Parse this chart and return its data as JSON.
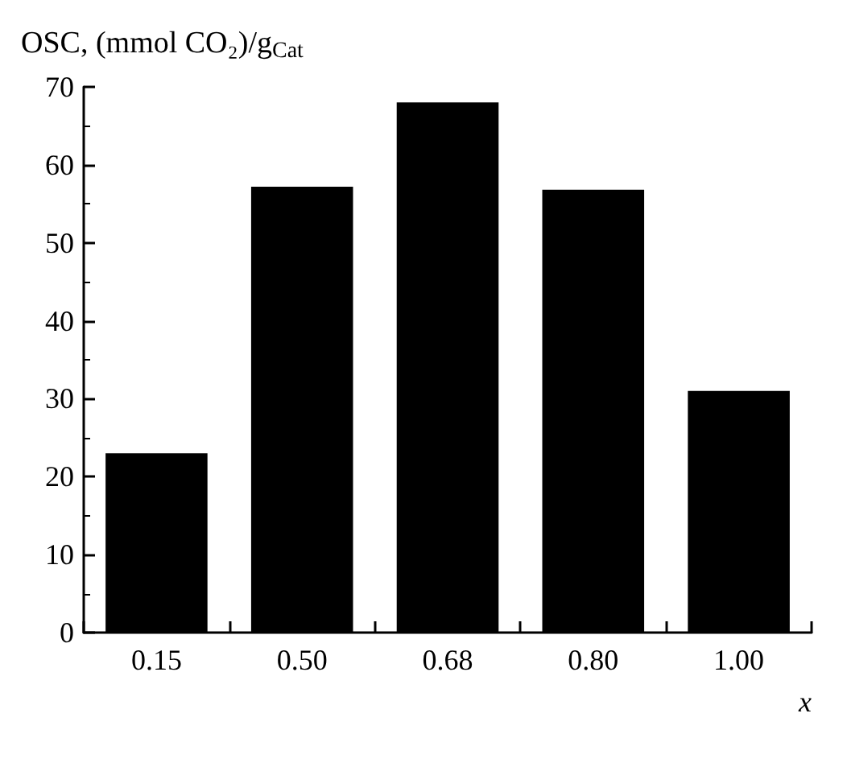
{
  "chart_data": {
    "type": "bar",
    "ylabel": "OSC, (mmol CO₂)/g$_{Cat}$",
    "xlabel": "x",
    "categories": [
      "0.15",
      "0.50",
      "0.68",
      "0.80",
      "1.00"
    ],
    "values": [
      23,
      57.2,
      68,
      56.8,
      31
    ],
    "color": "#000000",
    "ylim": [
      0,
      70
    ],
    "yticks": [
      0,
      10,
      20,
      30,
      40,
      50,
      60,
      70
    ],
    "grid": false
  }
}
